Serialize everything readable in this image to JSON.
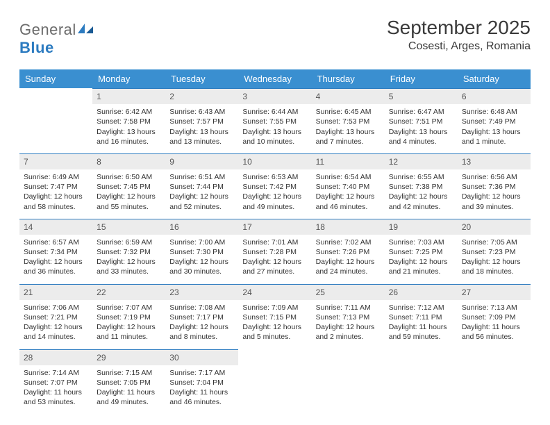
{
  "logo": {
    "prefix": "General",
    "suffix": "Blue"
  },
  "title": "September 2025",
  "location": "Cosesti, Arges, Romania",
  "colors": {
    "header_bg": "#3a8fd0",
    "header_text": "#ffffff",
    "daynum_bg": "#ececec",
    "daynum_border": "#2c7bc0",
    "body_text": "#333333",
    "logo_gray": "#6b6b6b",
    "logo_blue": "#2c7bc0"
  },
  "weekdays": [
    "Sunday",
    "Monday",
    "Tuesday",
    "Wednesday",
    "Thursday",
    "Friday",
    "Saturday"
  ],
  "weeks": [
    [
      null,
      {
        "n": "1",
        "sr": "Sunrise: 6:42 AM",
        "ss": "Sunset: 7:58 PM",
        "dl": "Daylight: 13 hours and 16 minutes."
      },
      {
        "n": "2",
        "sr": "Sunrise: 6:43 AM",
        "ss": "Sunset: 7:57 PM",
        "dl": "Daylight: 13 hours and 13 minutes."
      },
      {
        "n": "3",
        "sr": "Sunrise: 6:44 AM",
        "ss": "Sunset: 7:55 PM",
        "dl": "Daylight: 13 hours and 10 minutes."
      },
      {
        "n": "4",
        "sr": "Sunrise: 6:45 AM",
        "ss": "Sunset: 7:53 PM",
        "dl": "Daylight: 13 hours and 7 minutes."
      },
      {
        "n": "5",
        "sr": "Sunrise: 6:47 AM",
        "ss": "Sunset: 7:51 PM",
        "dl": "Daylight: 13 hours and 4 minutes."
      },
      {
        "n": "6",
        "sr": "Sunrise: 6:48 AM",
        "ss": "Sunset: 7:49 PM",
        "dl": "Daylight: 13 hours and 1 minute."
      }
    ],
    [
      {
        "n": "7",
        "sr": "Sunrise: 6:49 AM",
        "ss": "Sunset: 7:47 PM",
        "dl": "Daylight: 12 hours and 58 minutes."
      },
      {
        "n": "8",
        "sr": "Sunrise: 6:50 AM",
        "ss": "Sunset: 7:45 PM",
        "dl": "Daylight: 12 hours and 55 minutes."
      },
      {
        "n": "9",
        "sr": "Sunrise: 6:51 AM",
        "ss": "Sunset: 7:44 PM",
        "dl": "Daylight: 12 hours and 52 minutes."
      },
      {
        "n": "10",
        "sr": "Sunrise: 6:53 AM",
        "ss": "Sunset: 7:42 PM",
        "dl": "Daylight: 12 hours and 49 minutes."
      },
      {
        "n": "11",
        "sr": "Sunrise: 6:54 AM",
        "ss": "Sunset: 7:40 PM",
        "dl": "Daylight: 12 hours and 46 minutes."
      },
      {
        "n": "12",
        "sr": "Sunrise: 6:55 AM",
        "ss": "Sunset: 7:38 PM",
        "dl": "Daylight: 12 hours and 42 minutes."
      },
      {
        "n": "13",
        "sr": "Sunrise: 6:56 AM",
        "ss": "Sunset: 7:36 PM",
        "dl": "Daylight: 12 hours and 39 minutes."
      }
    ],
    [
      {
        "n": "14",
        "sr": "Sunrise: 6:57 AM",
        "ss": "Sunset: 7:34 PM",
        "dl": "Daylight: 12 hours and 36 minutes."
      },
      {
        "n": "15",
        "sr": "Sunrise: 6:59 AM",
        "ss": "Sunset: 7:32 PM",
        "dl": "Daylight: 12 hours and 33 minutes."
      },
      {
        "n": "16",
        "sr": "Sunrise: 7:00 AM",
        "ss": "Sunset: 7:30 PM",
        "dl": "Daylight: 12 hours and 30 minutes."
      },
      {
        "n": "17",
        "sr": "Sunrise: 7:01 AM",
        "ss": "Sunset: 7:28 PM",
        "dl": "Daylight: 12 hours and 27 minutes."
      },
      {
        "n": "18",
        "sr": "Sunrise: 7:02 AM",
        "ss": "Sunset: 7:26 PM",
        "dl": "Daylight: 12 hours and 24 minutes."
      },
      {
        "n": "19",
        "sr": "Sunrise: 7:03 AM",
        "ss": "Sunset: 7:25 PM",
        "dl": "Daylight: 12 hours and 21 minutes."
      },
      {
        "n": "20",
        "sr": "Sunrise: 7:05 AM",
        "ss": "Sunset: 7:23 PM",
        "dl": "Daylight: 12 hours and 18 minutes."
      }
    ],
    [
      {
        "n": "21",
        "sr": "Sunrise: 7:06 AM",
        "ss": "Sunset: 7:21 PM",
        "dl": "Daylight: 12 hours and 14 minutes."
      },
      {
        "n": "22",
        "sr": "Sunrise: 7:07 AM",
        "ss": "Sunset: 7:19 PM",
        "dl": "Daylight: 12 hours and 11 minutes."
      },
      {
        "n": "23",
        "sr": "Sunrise: 7:08 AM",
        "ss": "Sunset: 7:17 PM",
        "dl": "Daylight: 12 hours and 8 minutes."
      },
      {
        "n": "24",
        "sr": "Sunrise: 7:09 AM",
        "ss": "Sunset: 7:15 PM",
        "dl": "Daylight: 12 hours and 5 minutes."
      },
      {
        "n": "25",
        "sr": "Sunrise: 7:11 AM",
        "ss": "Sunset: 7:13 PM",
        "dl": "Daylight: 12 hours and 2 minutes."
      },
      {
        "n": "26",
        "sr": "Sunrise: 7:12 AM",
        "ss": "Sunset: 7:11 PM",
        "dl": "Daylight: 11 hours and 59 minutes."
      },
      {
        "n": "27",
        "sr": "Sunrise: 7:13 AM",
        "ss": "Sunset: 7:09 PM",
        "dl": "Daylight: 11 hours and 56 minutes."
      }
    ],
    [
      {
        "n": "28",
        "sr": "Sunrise: 7:14 AM",
        "ss": "Sunset: 7:07 PM",
        "dl": "Daylight: 11 hours and 53 minutes."
      },
      {
        "n": "29",
        "sr": "Sunrise: 7:15 AM",
        "ss": "Sunset: 7:05 PM",
        "dl": "Daylight: 11 hours and 49 minutes."
      },
      {
        "n": "30",
        "sr": "Sunrise: 7:17 AM",
        "ss": "Sunset: 7:04 PM",
        "dl": "Daylight: 11 hours and 46 minutes."
      },
      null,
      null,
      null,
      null
    ]
  ]
}
